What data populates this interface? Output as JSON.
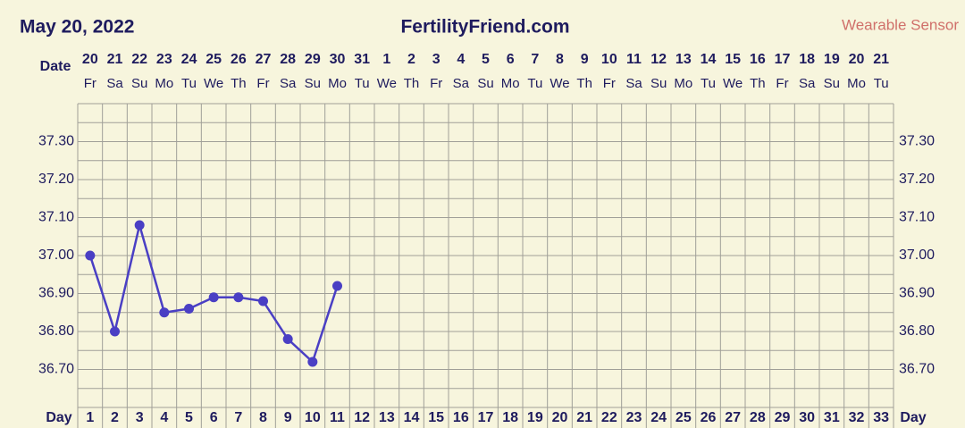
{
  "chart_data": {
    "type": "line",
    "date_title": "May 20, 2022",
    "title": "FertilityFriend.com",
    "source": "Wearable Sensor",
    "date_label": "Date",
    "day_label": "Day",
    "categories": [
      1,
      2,
      3,
      4,
      5,
      6,
      7,
      8,
      9,
      10,
      11,
      12,
      13,
      14,
      15,
      16,
      17,
      18,
      19,
      20,
      21,
      22,
      23,
      24,
      25,
      26,
      27,
      28,
      29,
      30,
      31,
      32,
      33
    ],
    "dates": [
      20,
      21,
      22,
      23,
      24,
      25,
      26,
      27,
      28,
      29,
      30,
      31,
      1,
      2,
      3,
      4,
      5,
      6,
      7,
      8,
      9,
      10,
      11,
      12,
      13,
      14,
      15,
      16,
      17,
      18,
      19,
      20,
      21
    ],
    "weekdays": [
      "Fr",
      "Sa",
      "Su",
      "Mo",
      "Tu",
      "We",
      "Th",
      "Fr",
      "Sa",
      "Su",
      "Mo",
      "Tu",
      "We",
      "Th",
      "Fr",
      "Sa",
      "Su",
      "Mo",
      "Tu",
      "We",
      "Th",
      "Fr",
      "Sa",
      "Su",
      "Mo",
      "Tu",
      "We",
      "Th",
      "Fr",
      "Sa",
      "Su",
      "Mo",
      "Tu"
    ],
    "values": [
      37.0,
      36.8,
      37.08,
      36.85,
      36.86,
      36.89,
      36.89,
      36.88,
      36.78,
      36.72,
      36.92,
      null,
      null,
      null,
      null,
      null,
      null,
      null,
      null,
      null,
      null,
      null,
      null,
      null,
      null,
      null,
      null,
      null,
      null,
      null,
      null,
      null,
      null
    ],
    "color": "#4a3fc4",
    "ylim": [
      36.6,
      37.4
    ],
    "yticks": [
      {
        "value": 36.7,
        "label": "36.70"
      },
      {
        "value": 36.8,
        "label": "36.80"
      },
      {
        "value": 36.9,
        "label": "36.90"
      },
      {
        "value": 37.0,
        "label": "37.00"
      },
      {
        "value": 37.1,
        "label": "37.10"
      },
      {
        "value": 37.2,
        "label": "37.20"
      },
      {
        "value": 37.3,
        "label": "37.30"
      }
    ],
    "grid": true
  }
}
